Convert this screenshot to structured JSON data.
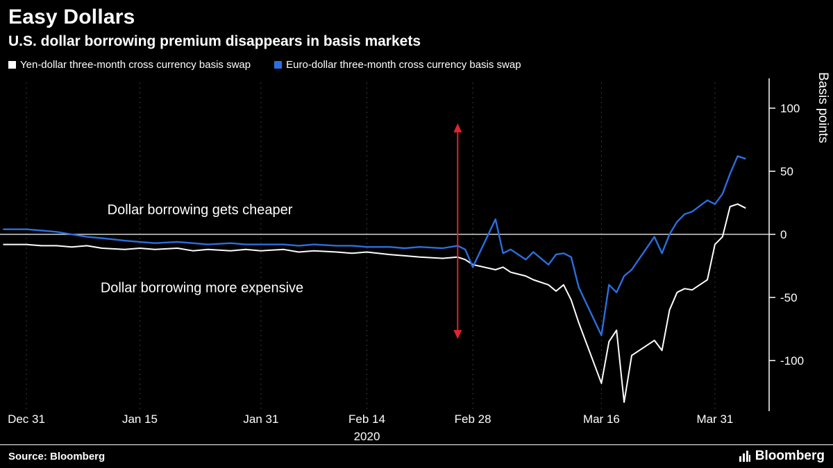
{
  "header": {
    "title": "Easy Dollars",
    "subtitle": "U.S. dollar borrowing premium disappears in basis markets"
  },
  "legend": [
    {
      "label": "Yen-dollar three-month cross currency basis swap",
      "color": "#ffffff"
    },
    {
      "label": "Euro-dollar three-month cross currency basis swap",
      "color": "#2b6fdf"
    }
  ],
  "footer": {
    "source": "Source: Bloomberg",
    "brand": "Bloomberg"
  },
  "chart_data": {
    "type": "line",
    "title": "Easy Dollars",
    "subtitle": "U.S. dollar borrowing premium disappears in basis markets",
    "ylabel": "Basis points",
    "x_unit": "days since Dec 31, 2019",
    "xlim": [
      -3,
      96
    ],
    "ylim": [
      -140,
      120
    ],
    "grid": "vertical-dashed",
    "y_ticks": [
      100,
      50,
      0,
      -50,
      -100
    ],
    "x_ticks": [
      {
        "day": 0,
        "label": "Dec 31"
      },
      {
        "day": 15,
        "label": "Jan 15"
      },
      {
        "day": 31,
        "label": "Jan 31"
      },
      {
        "day": 45,
        "label": "Feb 14"
      },
      {
        "day": 59,
        "label": "Feb 28"
      },
      {
        "day": 76,
        "label": "Mar 16"
      },
      {
        "day": 91,
        "label": "Mar 31"
      }
    ],
    "x_axis_year": "2020",
    "x": [
      -3,
      0,
      2,
      4,
      6,
      8,
      10,
      13,
      15,
      17,
      20,
      22,
      24,
      27,
      29,
      31,
      34,
      36,
      38,
      41,
      43,
      45,
      48,
      50,
      52,
      55,
      57,
      58,
      59,
      62,
      63,
      64,
      66,
      67,
      69,
      70,
      71,
      72,
      73,
      76,
      77,
      78,
      79,
      80,
      83,
      84,
      85,
      86,
      87,
      88,
      90,
      91,
      92,
      93,
      94,
      95
    ],
    "series": [
      {
        "name": "Yen-dollar three-month cross currency basis swap",
        "color": "#ffffff",
        "width": 2,
        "values": [
          -8,
          -8,
          -9,
          -9,
          -10,
          -9,
          -11,
          -12,
          -11,
          -12,
          -11,
          -13,
          -12,
          -13,
          -12,
          -13,
          -12,
          -14,
          -13,
          -14,
          -15,
          -14,
          -16,
          -17,
          -18,
          -19,
          -18,
          -20,
          -24,
          -28,
          -26,
          -30,
          -33,
          -36,
          -40,
          -45,
          -40,
          -52,
          -70,
          -118,
          -85,
          -76,
          -133,
          -96,
          -84,
          -92,
          -60,
          -46,
          -43,
          -44,
          -36,
          -8,
          -2,
          22,
          24,
          21
        ]
      },
      {
        "name": "Euro-dollar three-month cross currency basis swap",
        "color": "#2b6fdf",
        "width": 2.4,
        "values": [
          4,
          4,
          3,
          2,
          0,
          -2,
          -3,
          -5,
          -6,
          -7,
          -6,
          -7,
          -8,
          -7,
          -8,
          -8,
          -8,
          -9,
          -8,
          -9,
          -9,
          -10,
          -10,
          -11,
          -10,
          -11,
          -9,
          -12,
          -26,
          12,
          -15,
          -12,
          -20,
          -14,
          -24,
          -16,
          -15,
          -18,
          -42,
          -80,
          -40,
          -46,
          -33,
          -28,
          -2,
          -15,
          0,
          10,
          16,
          18,
          27,
          24,
          32,
          48,
          62,
          60
        ]
      }
    ],
    "annotations": [
      {
        "text": "Dollar borrowing gets cheaper",
        "x_day": 10.7,
        "y_bps": 16
      },
      {
        "text": "Dollar borrowing more expensive",
        "x_day": 9.8,
        "y_bps": -46
      }
    ],
    "arrow": {
      "x_day": 57,
      "from_bps": -83,
      "to_bps": 88,
      "color": "#e2232e"
    },
    "zero_line": true
  }
}
